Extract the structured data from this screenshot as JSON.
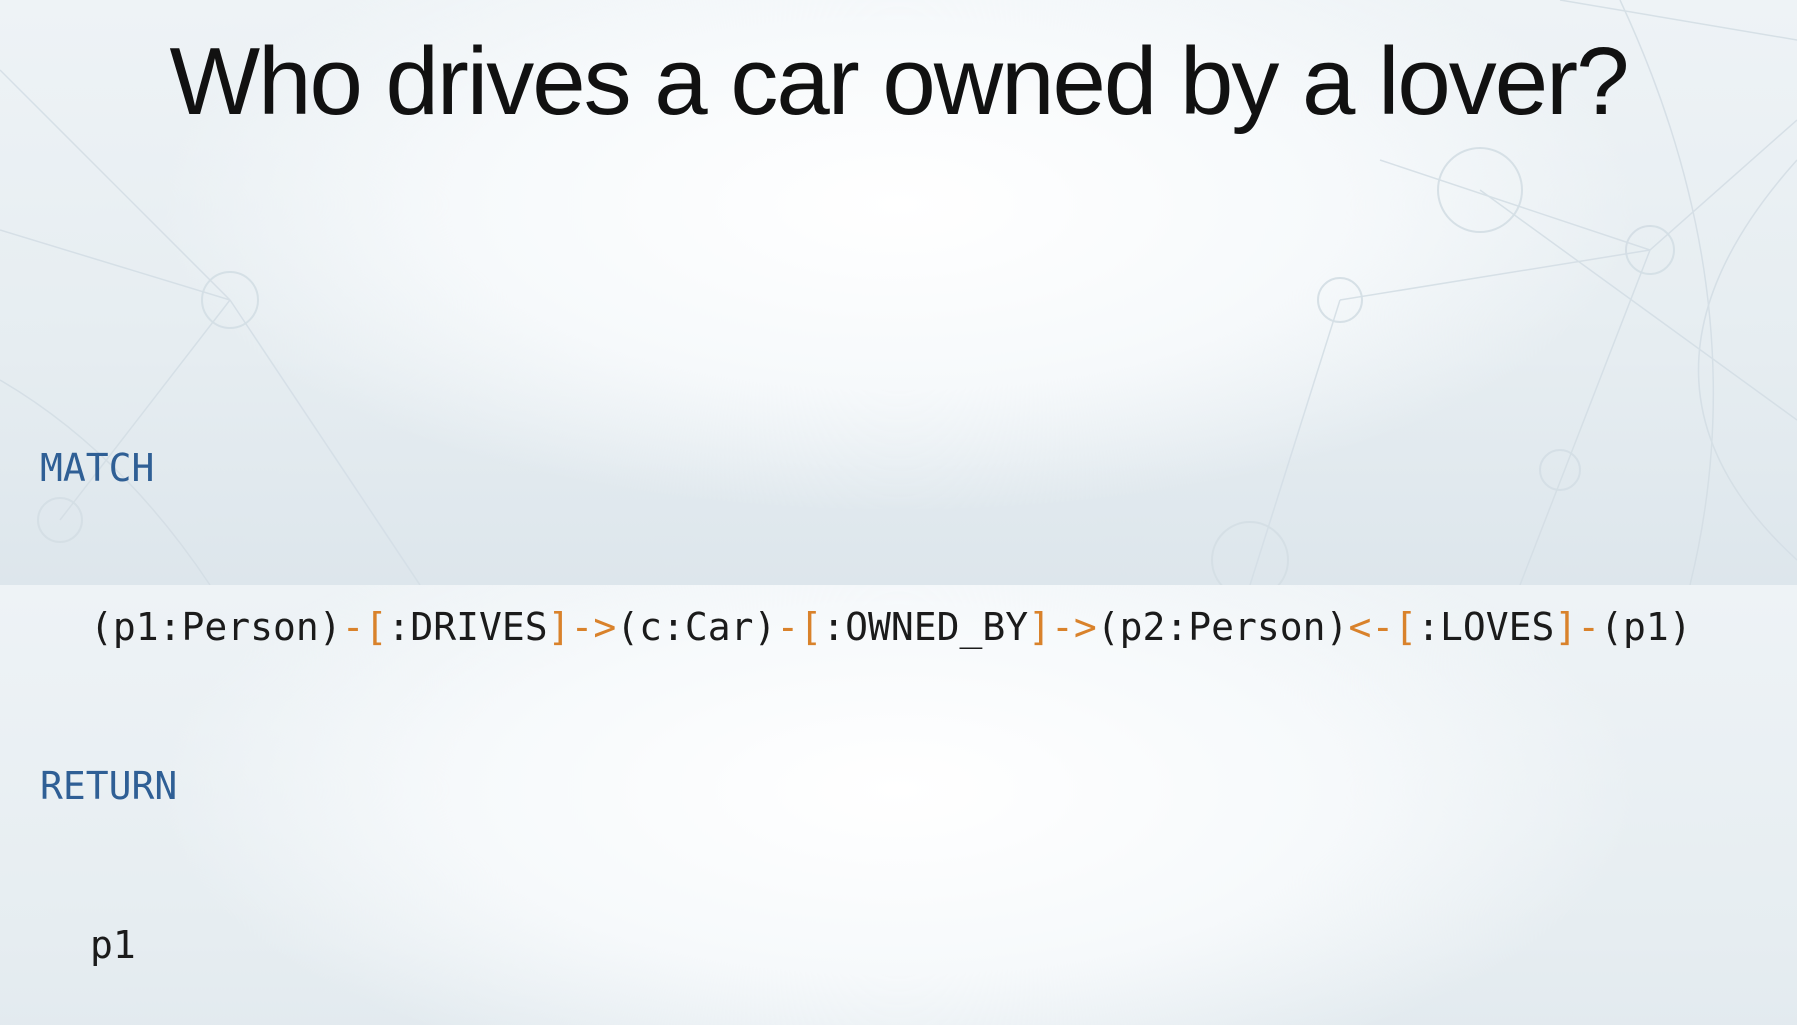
{
  "slide": {
    "title": "Who drives a car owned by a lover?"
  },
  "query": {
    "match_keyword": "MATCH",
    "pattern_tokens": [
      {
        "text": "(p1:Person)",
        "kind": "node"
      },
      {
        "text": "-",
        "kind": "rel"
      },
      {
        "text": "[",
        "kind": "rel"
      },
      {
        "text": ":DRIVES",
        "kind": "node"
      },
      {
        "text": "]",
        "kind": "rel"
      },
      {
        "text": "->",
        "kind": "rel"
      },
      {
        "text": "(c:Car)",
        "kind": "node"
      },
      {
        "text": "-",
        "kind": "rel"
      },
      {
        "text": "[",
        "kind": "rel"
      },
      {
        "text": ":OWNED_BY",
        "kind": "node"
      },
      {
        "text": "]",
        "kind": "rel"
      },
      {
        "text": "->",
        "kind": "rel"
      },
      {
        "text": "(p2:Person)",
        "kind": "node"
      },
      {
        "text": "<-",
        "kind": "rel"
      },
      {
        "text": "[",
        "kind": "rel"
      },
      {
        "text": ":LOVES",
        "kind": "node"
      },
      {
        "text": "]",
        "kind": "rel"
      },
      {
        "text": "-",
        "kind": "rel"
      },
      {
        "text": "(p1)",
        "kind": "node"
      }
    ],
    "return_keyword": "RETURN",
    "return_value": "p1"
  },
  "colors": {
    "keyword": "#2f5f95",
    "relationship": "#d9822b",
    "text": "#1b1b1b",
    "title": "#111111"
  }
}
